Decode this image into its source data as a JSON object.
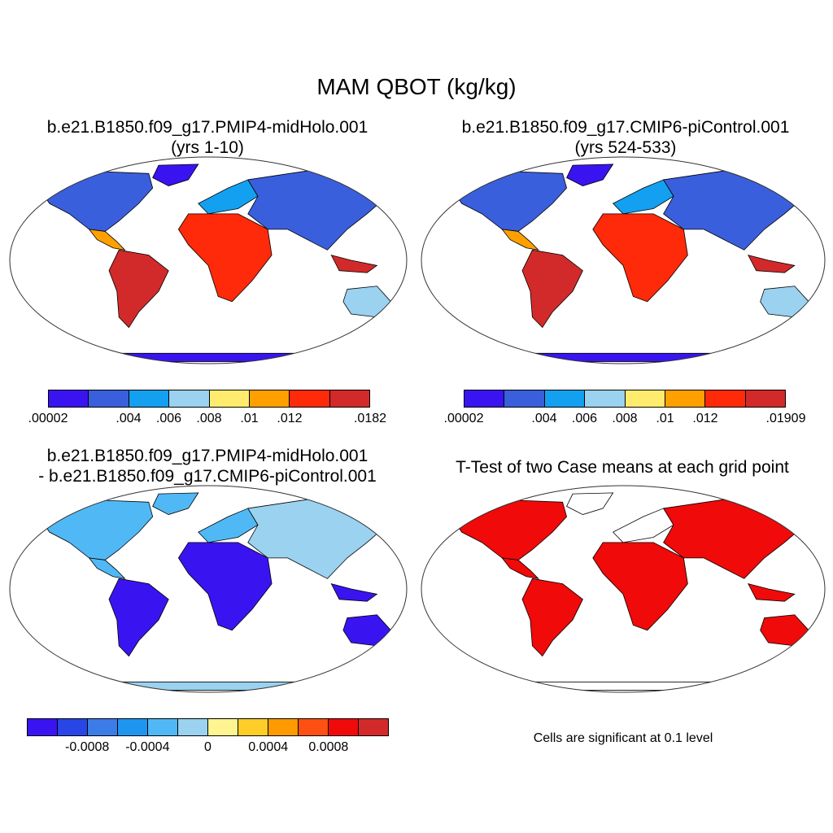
{
  "main_title": "MAM QBOT (kg/kg)",
  "panels": [
    {
      "title_line1": "b.e21.B1850.f09_g17.PMIP4-midHolo.001",
      "title_line2": "(yrs 1-10)"
    },
    {
      "title_line1": "b.e21.B1850.f09_g17.CMIP6-piControl.001",
      "title_line2": "(yrs 524-533)"
    },
    {
      "title_line1": "b.e21.B1850.f09_g17.PMIP4-midHolo.001",
      "title_line2": "- b.e21.B1850.f09_g17.CMIP6-piControl.001"
    },
    {
      "title_line1": "T-Test of two Case means at each grid point",
      "title_line2": ""
    }
  ],
  "colorbars": [
    {
      "colors": [
        "#3a14f0",
        "#3a5fdc",
        "#14a0f0",
        "#9ad2f0",
        "#ffec6e",
        "#ffa000",
        "#ff2a0a",
        "#d22a2a"
      ],
      "labels": [
        ".00002",
        ".004",
        ".006",
        ".008",
        ".01",
        ".012",
        ".0182"
      ],
      "label_slots": [
        0,
        2,
        3,
        4,
        5,
        6,
        8
      ]
    },
    {
      "colors": [
        "#3a14f0",
        "#3a5fdc",
        "#14a0f0",
        "#9ad2f0",
        "#ffec6e",
        "#ffa000",
        "#ff2a0a",
        "#d22a2a"
      ],
      "labels": [
        ".00002",
        ".004",
        ".006",
        ".008",
        ".01",
        ".012",
        ".01909"
      ],
      "label_slots": [
        0,
        2,
        3,
        4,
        5,
        6,
        8
      ]
    },
    {
      "colors": [
        "#3a14f0",
        "#2846e6",
        "#3c7ce6",
        "#1e96f0",
        "#50b9f5",
        "#9ad2f0",
        "#fff590",
        "#ffcd28",
        "#ff9b00",
        "#ff5014",
        "#f00a0a",
        "#d22a2a"
      ],
      "labels": [
        "-0.0008",
        "-0.0004",
        "0",
        "0.0004",
        "0.0008"
      ],
      "label_slots": [
        2,
        4,
        6,
        8,
        10
      ]
    }
  ],
  "significance_note": "Cells are significant at 0.1 level",
  "map_palettes": {
    "mean": {
      "cold": "#3a14f0",
      "cool": "#3a5fdc",
      "mid": "#14a0f0",
      "light": "#9ad2f0",
      "yellow": "#ffec6e",
      "orange": "#ffa000",
      "red": "#ff2a0a",
      "dark": "#d22a2a"
    },
    "diff": {
      "antarctic": "#9ad2f0",
      "land": "#50b9f5",
      "wet": "#3a14f0",
      "yellow": "#fff590"
    },
    "ttest": {
      "sig": "#f00a0a"
    }
  }
}
